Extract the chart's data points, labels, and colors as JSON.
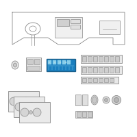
{
  "bg_color": "#ffffff",
  "line_color": "#888888",
  "highlight_fill": "#1a7fbf",
  "dark_line": "#555555"
}
